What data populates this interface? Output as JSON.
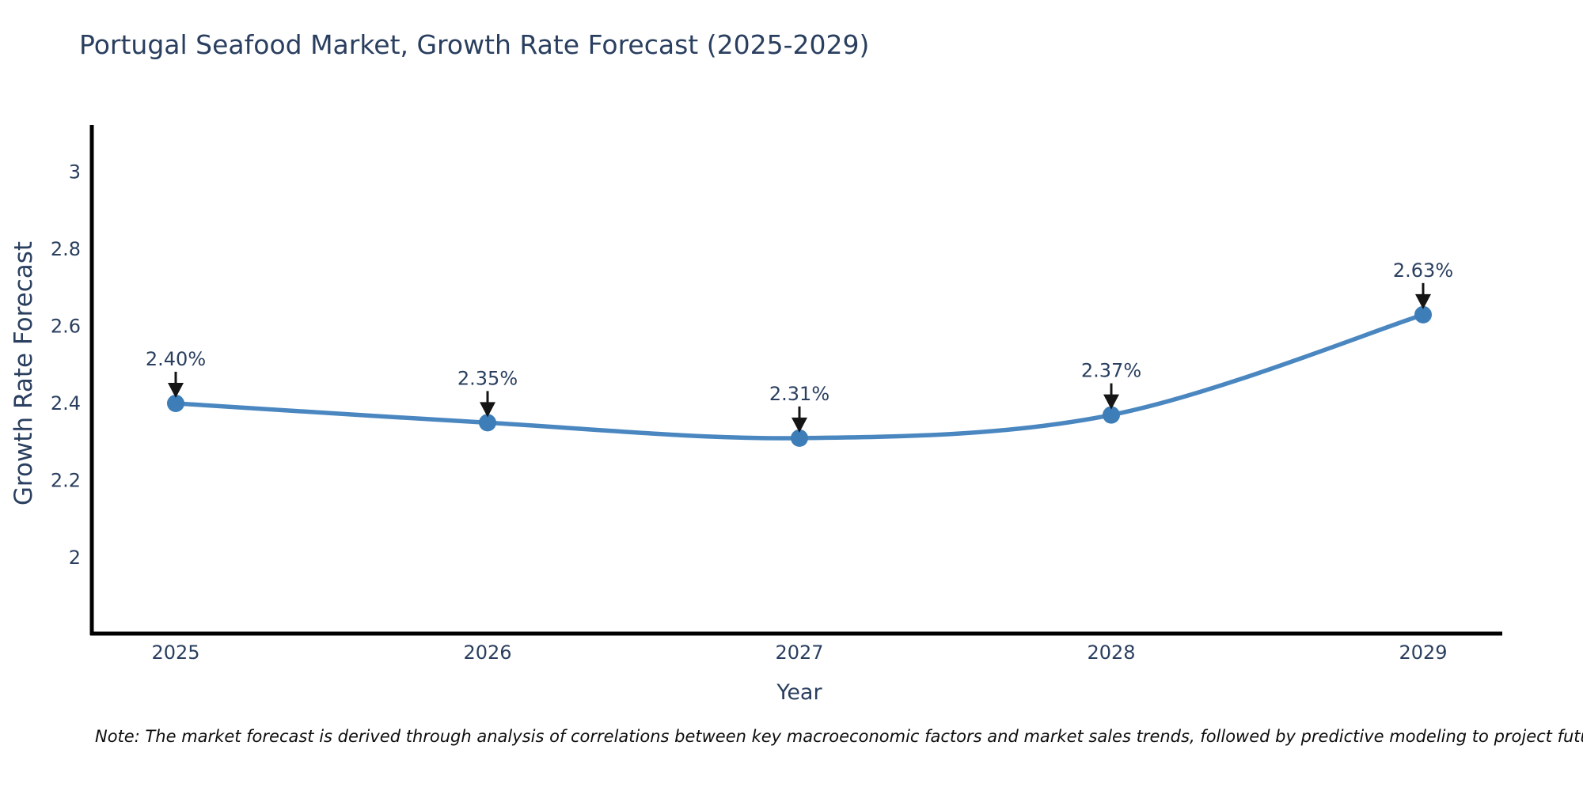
{
  "title": "Portugal Seafood Market, Growth Rate Forecast (2025-2029)",
  "note": "Note: The market forecast is derived through analysis of correlations between key macroeconomic factors and market sales trends, followed by predictive modeling to project future sales",
  "colors": {
    "line": "#4a87c0",
    "marker": "#3d7db8",
    "axis": "#000000",
    "text": "#2a3f5f",
    "arrow": "#151515",
    "note_text": "#0d0d0d",
    "background": "#ffffff"
  },
  "chart_data": {
    "type": "line",
    "title": "Portugal Seafood Market, Growth Rate Forecast (2025-2029)",
    "categories": [
      "2025",
      "2026",
      "2027",
      "2028",
      "2029"
    ],
    "values": [
      2.4,
      2.35,
      2.31,
      2.37,
      2.63
    ],
    "point_labels": [
      "2.40%",
      "2.35%",
      "2.31%",
      "2.37%",
      "2.63%"
    ],
    "xlabel": "Year",
    "ylabel": "Growth Rate Forecast",
    "ytick_values": [
      2,
      2.2,
      2.4,
      2.6,
      2.8,
      3
    ],
    "ytick_labels": [
      "2",
      "2.2",
      "2.4",
      "2.6",
      "2.8",
      "3"
    ],
    "ylim": [
      1.803,
      3.122
    ],
    "line_shape": "spline",
    "grid": false,
    "legend": "none",
    "annotation_arrows": true
  }
}
